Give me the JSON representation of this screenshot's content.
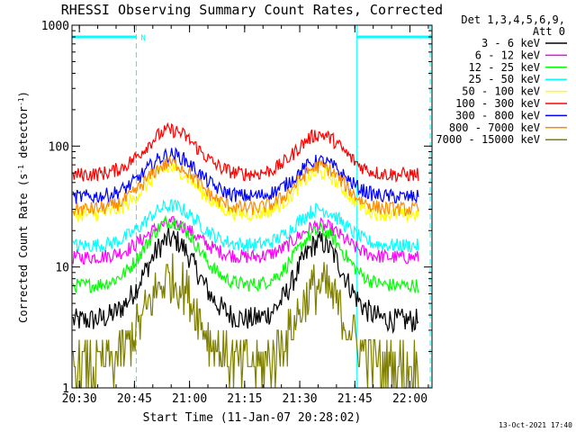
{
  "chart_data": {
    "type": "line",
    "title": "RHESSI Observing Summary Count Rates, Corrected",
    "xlabel": "Start Time (11-Jan-07 20:28:02)",
    "ylabel_main": "Corrected Count Rate (s",
    "ylabel_sup1": "-1",
    "ylabel_mid": " detector",
    "ylabel_sup2": "-1",
    "ylabel_end": ")",
    "yscale": "log",
    "ylim": [
      1,
      1000
    ],
    "xlim_minutes": [
      0,
      98
    ],
    "x_tick_labels": [
      "20:30",
      "20:45",
      "21:00",
      "21:15",
      "21:30",
      "21:45",
      "22:00"
    ],
    "x_tick_minutes": [
      2,
      17,
      32,
      47,
      62,
      77,
      92
    ],
    "y_tick_labels": [
      "1",
      "10",
      "100",
      "1000"
    ],
    "y_tick_values": [
      1,
      10,
      100,
      1000
    ],
    "legend_header_line1": "Det 1,3,4,5,6,9,",
    "legend_header_line2": "Att 0",
    "legend_position": "right",
    "footer_date": "13-Oct-2021 17:40",
    "night_marker_label": "N",
    "night_intervals_minutes": [
      [
        0,
        17.5
      ],
      [
        77.5,
        98
      ]
    ],
    "series": [
      {
        "name": "3 - 6 keV",
        "color": "#000000",
        "baseline": 3.6,
        "peak1": 17,
        "peak2": 16
      },
      {
        "name": "6 - 12 keV",
        "color": "#ff00ff",
        "baseline": 12,
        "peak1": 23,
        "peak2": 22
      },
      {
        "name": "12 - 25 keV",
        "color": "#00ff00",
        "baseline": 7,
        "peak1": 24,
        "peak2": 20
      },
      {
        "name": "25 - 50 keV",
        "color": "#00ffff",
        "baseline": 15,
        "peak1": 32,
        "peak2": 30
      },
      {
        "name": "50 - 100 keV",
        "color": "#ffff00",
        "baseline": 27,
        "peak1": 65,
        "peak2": 60
      },
      {
        "name": "100 - 300 keV",
        "color": "#ff0000",
        "baseline": 58,
        "peak1": 135,
        "peak2": 125
      },
      {
        "name": "300 - 800 keV",
        "color": "#0000ff",
        "baseline": 38,
        "peak1": 85,
        "peak2": 75
      },
      {
        "name": "800 - 7000 keV",
        "color": "#ff8c00",
        "baseline": 30,
        "peak1": 72,
        "peak2": 68
      },
      {
        "name": "7000 - 15000 keV",
        "color": "#808000",
        "baseline": 1.5,
        "peak1": 8,
        "peak2": 7
      }
    ]
  }
}
